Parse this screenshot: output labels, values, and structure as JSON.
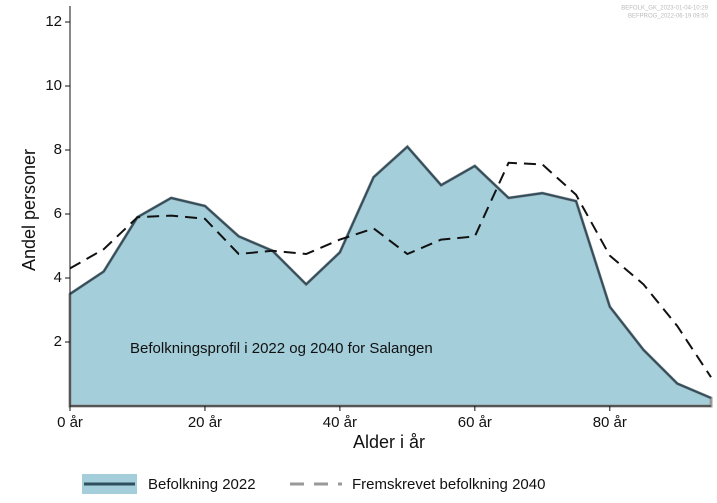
{
  "chart_data": {
    "type": "line",
    "notes": [
      "BEFOLK_GK_2023-01-04-10:29",
      "BEFPROG_2022-06-19 09:50"
    ],
    "annotation": "Befolkningsprofil i 2022 og 2040 for Salangen",
    "x_label": "Alder i år",
    "y_label": "Andel personer",
    "x": [
      0,
      5,
      10,
      15,
      20,
      25,
      30,
      35,
      40,
      45,
      50,
      55,
      60,
      65,
      70,
      75,
      80,
      85,
      90,
      95
    ],
    "series": [
      {
        "name": "Befolkning 2022",
        "color": "#2f4f5f",
        "fill": "#a3ceda",
        "style": "area",
        "values": [
          3.5,
          4.2,
          5.9,
          6.5,
          6.25,
          5.3,
          4.85,
          3.8,
          4.8,
          7.15,
          8.1,
          6.9,
          7.5,
          6.5,
          6.65,
          6.4,
          3.1,
          1.75,
          0.7,
          0.25
        ]
      },
      {
        "name": "Fremskrevet befolkning 2040",
        "color": "#111111",
        "style": "dashed",
        "values": [
          4.3,
          4.9,
          5.9,
          5.95,
          5.85,
          4.75,
          4.85,
          4.75,
          5.2,
          5.55,
          4.75,
          5.2,
          5.3,
          7.6,
          7.55,
          6.6,
          4.7,
          3.8,
          2.5,
          0.9
        ]
      }
    ],
    "xlim": [
      0,
      95
    ],
    "ylim": [
      0,
      12.5
    ],
    "xticks": [
      {
        "value": 0,
        "label": "0 år"
      },
      {
        "value": 20,
        "label": "20 år"
      },
      {
        "value": 40,
        "label": "40 år"
      },
      {
        "value": 60,
        "label": "60 år"
      },
      {
        "value": 80,
        "label": "80 år"
      }
    ],
    "yticks": [
      2,
      4,
      6,
      8,
      10,
      12
    ]
  }
}
